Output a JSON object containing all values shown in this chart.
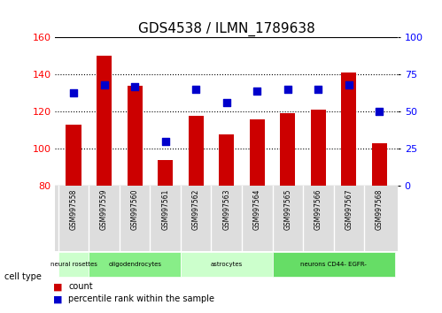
{
  "title": "GDS4538 / ILMN_1789638",
  "samples": [
    "GSM997558",
    "GSM997559",
    "GSM997560",
    "GSM997561",
    "GSM997562",
    "GSM997563",
    "GSM997564",
    "GSM997565",
    "GSM997566",
    "GSM997567",
    "GSM997568"
  ],
  "counts": [
    113,
    150,
    134,
    94,
    118,
    108,
    116,
    119,
    121,
    141,
    103
  ],
  "percentiles": [
    63,
    68,
    67,
    30,
    65,
    56,
    64,
    65,
    65,
    68,
    50
  ],
  "ylim_left": [
    80,
    160
  ],
  "ylim_right": [
    0,
    100
  ],
  "yticks_left": [
    80,
    100,
    120,
    140,
    160
  ],
  "yticks_right": [
    0,
    25,
    50,
    75,
    100
  ],
  "bar_color": "#cc0000",
  "dot_color": "#0000cc",
  "bar_width": 0.5,
  "cell_types": [
    {
      "label": "neural rosettes",
      "start": 0,
      "end": 1,
      "color": "#ccffcc"
    },
    {
      "label": "oligodendrocytes",
      "start": 1,
      "end": 3,
      "color": "#88ee88"
    },
    {
      "label": "astrocytes",
      "start": 3,
      "end": 6,
      "color": "#ccffcc"
    },
    {
      "label": "neurons CD44- EGFR-",
      "start": 6,
      "end": 10,
      "color": "#66dd66"
    }
  ],
  "legend_count_label": "count",
  "legend_pct_label": "percentile rank within the sample",
  "cell_type_label": "cell type",
  "background_color": "#ffffff",
  "plot_bg": "#ffffff"
}
